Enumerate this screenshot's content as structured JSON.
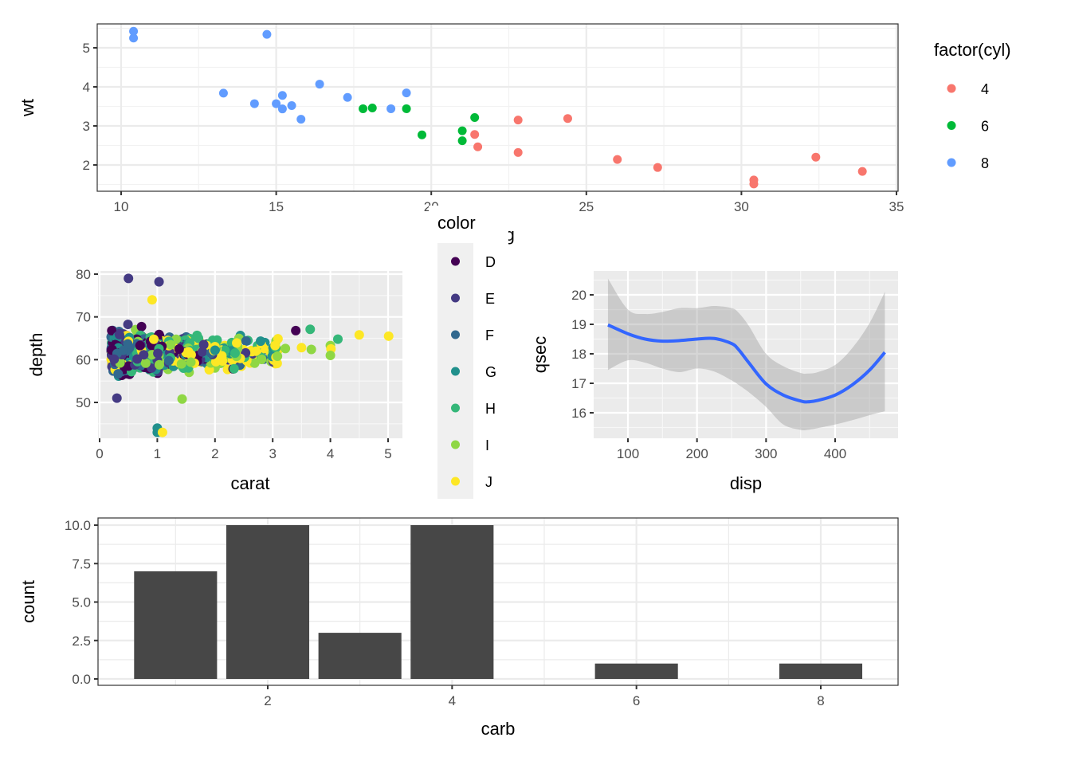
{
  "chart_data": [
    {
      "id": "mtcars-scatter",
      "type": "scatter",
      "theme": "bw",
      "xlabel": "mpg",
      "ylabel": "wt",
      "xlim": [
        9.2,
        35.0
      ],
      "ylim": [
        1.3,
        5.65
      ],
      "xticks": [
        10,
        15,
        20,
        25,
        30,
        35
      ],
      "yticks": [
        2,
        3,
        4,
        5
      ],
      "grid": true,
      "legend": {
        "title": "factor(cyl)",
        "position": "right",
        "entries": [
          {
            "label": "4",
            "color": "#F8766D"
          },
          {
            "label": "6",
            "color": "#00BA38"
          },
          {
            "label": "8",
            "color": "#619CFF"
          }
        ]
      },
      "series": [
        {
          "name": "4",
          "color": "#F8766D",
          "points": [
            [
              22.8,
              2.32
            ],
            [
              24.4,
              3.19
            ],
            [
              22.8,
              3.15
            ],
            [
              32.4,
              2.2
            ],
            [
              30.4,
              1.615
            ],
            [
              33.9,
              1.835
            ],
            [
              21.5,
              2.465
            ],
            [
              27.3,
              1.935
            ],
            [
              26.0,
              2.14
            ],
            [
              30.4,
              1.513
            ],
            [
              21.4,
              2.78
            ]
          ]
        },
        {
          "name": "6",
          "color": "#00BA38",
          "points": [
            [
              21.0,
              2.62
            ],
            [
              21.0,
              2.875
            ],
            [
              21.4,
              3.215
            ],
            [
              18.1,
              3.46
            ],
            [
              19.2,
              3.44
            ],
            [
              17.8,
              3.44
            ],
            [
              19.7,
              2.77
            ]
          ]
        },
        {
          "name": "8",
          "color": "#619CFF",
          "points": [
            [
              18.7,
              3.44
            ],
            [
              14.3,
              3.57
            ],
            [
              16.4,
              4.07
            ],
            [
              17.3,
              3.73
            ],
            [
              15.2,
              3.78
            ],
            [
              10.4,
              5.25
            ],
            [
              10.4,
              5.424
            ],
            [
              14.7,
              5.345
            ],
            [
              15.5,
              3.52
            ],
            [
              15.2,
              3.435
            ],
            [
              13.3,
              3.84
            ],
            [
              19.2,
              3.845
            ],
            [
              15.8,
              3.17
            ],
            [
              15.0,
              3.57
            ]
          ]
        }
      ]
    },
    {
      "id": "diamonds-scatter",
      "type": "scatter",
      "theme": "grey",
      "xlabel": "carat",
      "ylabel": "depth",
      "xlim": [
        -0.05,
        5.26
      ],
      "ylim": [
        41.5,
        80.6
      ],
      "xticks": [
        0,
        1,
        2,
        3,
        4,
        5
      ],
      "yticks": [
        50,
        60,
        70,
        80
      ],
      "grid": true,
      "note": "dense point cloud (~54k points); body rendered as a representative sample, notable outliers listed explicitly",
      "legend": {
        "title": "color",
        "position": "center",
        "entries": [
          {
            "label": "D",
            "color": "#440154"
          },
          {
            "label": "E",
            "color": "#443A83"
          },
          {
            "label": "F",
            "color": "#31688E"
          },
          {
            "label": "G",
            "color": "#21908C"
          },
          {
            "label": "H",
            "color": "#35B779"
          },
          {
            "label": "I",
            "color": "#8FD744"
          },
          {
            "label": "J",
            "color": "#FDE725"
          }
        ]
      },
      "outliers": [
        {
          "carat": 0.5,
          "depth": 79.0,
          "color": "E"
        },
        {
          "carat": 1.03,
          "depth": 78.2,
          "color": "E"
        },
        {
          "carat": 1.0,
          "depth": 44.0,
          "color": "G"
        },
        {
          "carat": 1.0,
          "depth": 43.0,
          "color": "G"
        },
        {
          "carat": 1.09,
          "depth": 43.0,
          "color": "J"
        },
        {
          "carat": 1.43,
          "depth": 50.8,
          "color": "I"
        },
        {
          "carat": 0.3,
          "depth": 51.0,
          "color": "E"
        },
        {
          "carat": 3.4,
          "depth": 66.8,
          "color": "D"
        },
        {
          "carat": 3.65,
          "depth": 67.1,
          "color": "H"
        },
        {
          "carat": 4.13,
          "depth": 64.8,
          "color": "H"
        },
        {
          "carat": 4.5,
          "depth": 65.8,
          "color": "J"
        },
        {
          "carat": 5.01,
          "depth": 65.5,
          "color": "J"
        },
        {
          "carat": 4.0,
          "depth": 63.3,
          "color": "I"
        },
        {
          "carat": 4.01,
          "depth": 62.5,
          "color": "J"
        },
        {
          "carat": 4.0,
          "depth": 61.0,
          "color": "I"
        },
        {
          "carat": 3.5,
          "depth": 62.8,
          "color": "J"
        },
        {
          "carat": 3.67,
          "depth": 62.4,
          "color": "I"
        },
        {
          "carat": 3.22,
          "depth": 62.6,
          "color": "I"
        },
        {
          "carat": 0.91,
          "depth": 74.0,
          "color": "J"
        }
      ]
    },
    {
      "id": "mtcars-smooth",
      "type": "line",
      "theme": "grey",
      "xlabel": "disp",
      "ylabel": "qsec",
      "xlim": [
        50,
        490
      ],
      "ylim": [
        15.2,
        20.8
      ],
      "xticks": [
        100,
        200,
        300,
        400
      ],
      "yticks": [
        16,
        17,
        18,
        19,
        20
      ],
      "grid": true,
      "line_color": "#3366FF",
      "ribbon_color": "#999999",
      "x": [
        71.1,
        100,
        125,
        150,
        175,
        200,
        225,
        250,
        260,
        275,
        300,
        325,
        350,
        360,
        375,
        400,
        425,
        450,
        472
      ],
      "y": [
        18.98,
        18.68,
        18.5,
        18.43,
        18.45,
        18.5,
        18.52,
        18.35,
        18.15,
        17.7,
        16.98,
        16.6,
        16.4,
        16.37,
        16.42,
        16.6,
        16.95,
        17.45,
        18.05
      ],
      "ymin": [
        17.45,
        17.78,
        17.7,
        17.5,
        17.38,
        17.5,
        17.4,
        17.1,
        16.95,
        16.7,
        16.2,
        15.6,
        15.42,
        15.42,
        15.48,
        15.6,
        15.75,
        15.92,
        16.05
      ],
      "ymax": [
        20.55,
        19.5,
        19.35,
        19.42,
        19.55,
        19.55,
        19.62,
        19.55,
        19.4,
        18.95,
        18.0,
        17.58,
        17.35,
        17.33,
        17.38,
        17.62,
        18.2,
        19.05,
        20.1
      ]
    },
    {
      "id": "carb-bar",
      "type": "bar",
      "theme": "bw",
      "xlabel": "carb",
      "ylabel": "count",
      "xlim": [
        0.2,
        8.85
      ],
      "ylim": [
        -0.5,
        10.5
      ],
      "xticks": [
        2,
        4,
        6,
        8
      ],
      "yticks": [
        "0.0",
        "2.5",
        "5.0",
        "7.5",
        "10.0"
      ],
      "ytick_values": [
        0,
        2.5,
        5,
        7.5,
        10
      ],
      "grid": true,
      "bar_color": "#474747",
      "categories": [
        1,
        2,
        3,
        4,
        6,
        8
      ],
      "values": [
        7,
        10,
        3,
        10,
        1,
        1
      ]
    }
  ]
}
